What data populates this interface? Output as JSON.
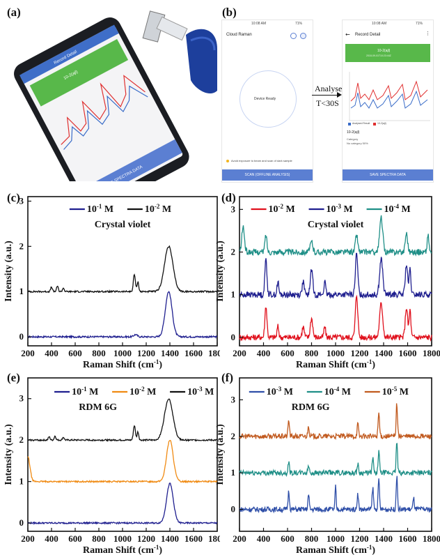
{
  "panel_labels": [
    "(a)",
    "(b)",
    "(c)",
    "(d)",
    "(e)",
    "(f)"
  ],
  "phone_photo": {
    "screen_header": "Record Detail",
    "green_card_title": "10-2(ajl)",
    "bottom_button": "SAVE SPECTRA DATA"
  },
  "app_screens": {
    "left": {
      "status_time": "10:08 AM",
      "status_battery": "71%",
      "app_title": "Cloud Raman",
      "device_status": "Device Ready",
      "warning_text": "Avoid exposure to beam and scan of dark sample",
      "scan_button": "SCAN (OFFLINE ANALYSIS)"
    },
    "arrow": {
      "label_top": "Analyse",
      "label_bottom": "T<30S"
    },
    "right": {
      "status_time": "10:08 AM",
      "status_battery": "71%",
      "header": "Record Detail",
      "card_title": "10-2(ajl)",
      "card_subtitle": "2018-09-01T10:23:44Z",
      "legend_a": "Analysed Result",
      "legend_b": "10-2(ajl)",
      "record_name": "10-2(ajl)",
      "category_label": "Category",
      "category_value": "No category 50%",
      "save_button": "SAVE SPECTRA DATA"
    }
  },
  "chart_data": [
    {
      "panel": "(c)",
      "type": "line",
      "xlabel": "Raman Shift (cm-1)",
      "ylabel": "Intensity (a.u.)",
      "xlim": [
        200,
        1800
      ],
      "ylim": [
        -0.2,
        3.1
      ],
      "xticks": [
        200,
        400,
        600,
        800,
        1000,
        1200,
        1400,
        1600,
        1800
      ],
      "yticks": [
        0,
        1,
        2,
        3
      ],
      "annotation": "Crystal violet",
      "legend_position": "top-center",
      "series": [
        {
          "name": "10-1 M",
          "color": "#1f1f8f",
          "offset": 0,
          "peaks": [
            [
              1390,
              1.0,
              40
            ],
            [
              1110,
              0.05,
              20
            ]
          ]
        },
        {
          "name": "10-2 M",
          "color": "#111111",
          "offset": 1,
          "peaks": [
            [
              1390,
              1.0,
              50
            ],
            [
              1100,
              0.38,
              12
            ],
            [
              1130,
              0.22,
              10
            ],
            [
              400,
              0.1,
              10
            ],
            [
              450,
              0.12,
              10
            ],
            [
              500,
              0.08,
              10
            ]
          ]
        }
      ]
    },
    {
      "panel": "(d)",
      "type": "line",
      "xlabel": "Raman Shift (cm-1)",
      "ylabel": "Intensity (a.u.)",
      "xlim": [
        200,
        1800
      ],
      "ylim": [
        -0.2,
        3.3
      ],
      "xticks": [
        200,
        400,
        600,
        800,
        1000,
        1200,
        1400,
        1600,
        1800
      ],
      "yticks": [
        0,
        1,
        2,
        3
      ],
      "annotation": "Crystal violet",
      "legend_position": "top",
      "series": [
        {
          "name": "10-2 M",
          "color": "#e0101c",
          "offset": 0,
          "peaks": [
            [
              420,
              0.75,
              12
            ],
            [
              520,
              0.25,
              10
            ],
            [
              730,
              0.25,
              12
            ],
            [
              800,
              0.45,
              14
            ],
            [
              910,
              0.25,
              10
            ],
            [
              1175,
              1.0,
              14
            ],
            [
              1380,
              0.8,
              18
            ],
            [
              1590,
              0.7,
              14
            ],
            [
              1620,
              0.65,
              10
            ]
          ]
        },
        {
          "name": "10-3 M",
          "color": "#1f1f8f",
          "offset": 1,
          "peaks": [
            [
              420,
              0.85,
              12
            ],
            [
              520,
              0.3,
              10
            ],
            [
              730,
              0.3,
              12
            ],
            [
              800,
              0.6,
              14
            ],
            [
              910,
              0.3,
              10
            ],
            [
              1175,
              0.95,
              14
            ],
            [
              1380,
              0.85,
              18
            ],
            [
              1590,
              0.7,
              14
            ],
            [
              1620,
              0.6,
              10
            ]
          ]
        },
        {
          "name": "10-4 M",
          "color": "#1f8f87",
          "offset": 2,
          "peaks": [
            [
              230,
              0.6,
              15
            ],
            [
              420,
              0.4,
              12
            ],
            [
              800,
              0.25,
              14
            ],
            [
              1175,
              0.4,
              14
            ],
            [
              1380,
              0.8,
              18
            ],
            [
              1590,
              0.45,
              14
            ],
            [
              1770,
              0.4,
              10
            ]
          ]
        }
      ]
    },
    {
      "panel": "(e)",
      "type": "line",
      "xlabel": "Raman Shift (cm-1)",
      "ylabel": "Intensity (a.u.)",
      "xlim": [
        200,
        1800
      ],
      "ylim": [
        -0.2,
        3.5
      ],
      "xticks": [
        200,
        400,
        600,
        800,
        1000,
        1200,
        1400,
        1600,
        1800
      ],
      "yticks": [
        0,
        1,
        2,
        3
      ],
      "annotation": "RDM 6G",
      "legend_position": "top",
      "series": [
        {
          "name": "10-1 M",
          "color": "#1f1f8f",
          "offset": 0,
          "peaks": [
            [
              1400,
              0.95,
              40
            ]
          ]
        },
        {
          "name": "10-2 M",
          "color": "#f08a12",
          "offset": 1,
          "peaks": [
            [
              200,
              0.6,
              25
            ],
            [
              1400,
              1.0,
              40
            ]
          ]
        },
        {
          "name": "10-3 M",
          "color": "#111111",
          "offset": 2,
          "peaks": [
            [
              1390,
              1.0,
              50
            ],
            [
              1100,
              0.35,
              12
            ],
            [
              1130,
              0.2,
              10
            ],
            [
              380,
              0.08,
              10
            ],
            [
              430,
              0.1,
              10
            ],
            [
              500,
              0.07,
              10
            ]
          ]
        }
      ]
    },
    {
      "panel": "(f)",
      "type": "line",
      "xlabel": "Raman Shift (cm-1)",
      "ylabel": "Intensity (a.u.)",
      "xlim": [
        200,
        1800
      ],
      "ylim": [
        -0.6,
        3.6
      ],
      "xticks": [
        200,
        400,
        600,
        800,
        1000,
        1200,
        1400,
        1600,
        1800
      ],
      "yticks": [
        0,
        1,
        2,
        3
      ],
      "annotation": "RDM 6G",
      "legend_position": "top",
      "series": [
        {
          "name": "10-3 M",
          "color": "#2f4fa8",
          "offset": 0,
          "peaks": [
            [
              610,
              0.5,
              8
            ],
            [
              775,
              0.4,
              8
            ],
            [
              1000,
              0.65,
              6
            ],
            [
              1185,
              0.45,
              8
            ],
            [
              1310,
              0.6,
              8
            ],
            [
              1360,
              0.8,
              8
            ],
            [
              1510,
              0.9,
              8
            ],
            [
              1650,
              0.3,
              8
            ]
          ]
        },
        {
          "name": "10-4 M",
          "color": "#1f8f87",
          "offset": 1,
          "peaks": [
            [
              610,
              0.3,
              8
            ],
            [
              775,
              0.2,
              8
            ],
            [
              1185,
              0.25,
              8
            ],
            [
              1310,
              0.4,
              8
            ],
            [
              1360,
              0.6,
              8
            ],
            [
              1510,
              0.85,
              8
            ]
          ]
        },
        {
          "name": "10-5 M",
          "color": "#c15a1f",
          "offset": 2,
          "peaks": [
            [
              610,
              0.45,
              8
            ],
            [
              775,
              0.3,
              8
            ],
            [
              1185,
              0.35,
              8
            ],
            [
              1360,
              0.65,
              8
            ],
            [
              1510,
              0.9,
              8
            ]
          ]
        }
      ]
    }
  ]
}
